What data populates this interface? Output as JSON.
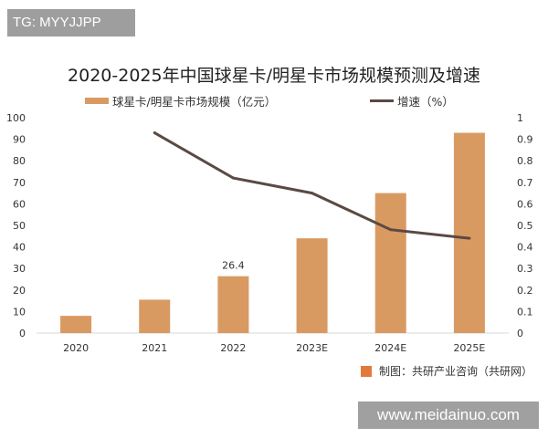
{
  "tag": "TG: MYYJJPP",
  "watermark": "www.meidainuo.com",
  "source": "制图：共研产业咨询（共研网）",
  "chart_data": {
    "type": "bar+line",
    "title": "2020-2025年中国球星卡/明星卡市场规模预测及增速",
    "categories": [
      "2020",
      "2021",
      "2022",
      "2023E",
      "2024E",
      "2025E"
    ],
    "series": [
      {
        "name": "球星卡/明星卡市场规模（亿元）",
        "type": "bar",
        "axis": "left",
        "values": [
          8,
          15.5,
          26.4,
          44,
          65,
          93
        ],
        "color": "#d99a62"
      },
      {
        "name": "增速（%）",
        "type": "line",
        "axis": "right",
        "values": [
          null,
          0.93,
          0.72,
          0.65,
          0.48,
          0.44
        ],
        "color": "#5a4a44"
      }
    ],
    "data_labels": [
      {
        "category": "2022",
        "text": "26.4"
      }
    ],
    "left_axis": {
      "range": [
        0,
        100
      ],
      "ticks": [
        "0",
        "10",
        "20",
        "30",
        "40",
        "50",
        "60",
        "70",
        "80",
        "90",
        "100"
      ]
    },
    "right_axis": {
      "range": [
        0,
        1
      ],
      "ticks": [
        "0",
        "0.1",
        "0.2",
        "0.3",
        "0.4",
        "0.5",
        "0.6",
        "0.7",
        "0.8",
        "0.9",
        "1"
      ]
    },
    "grid": false,
    "legend": "top"
  }
}
